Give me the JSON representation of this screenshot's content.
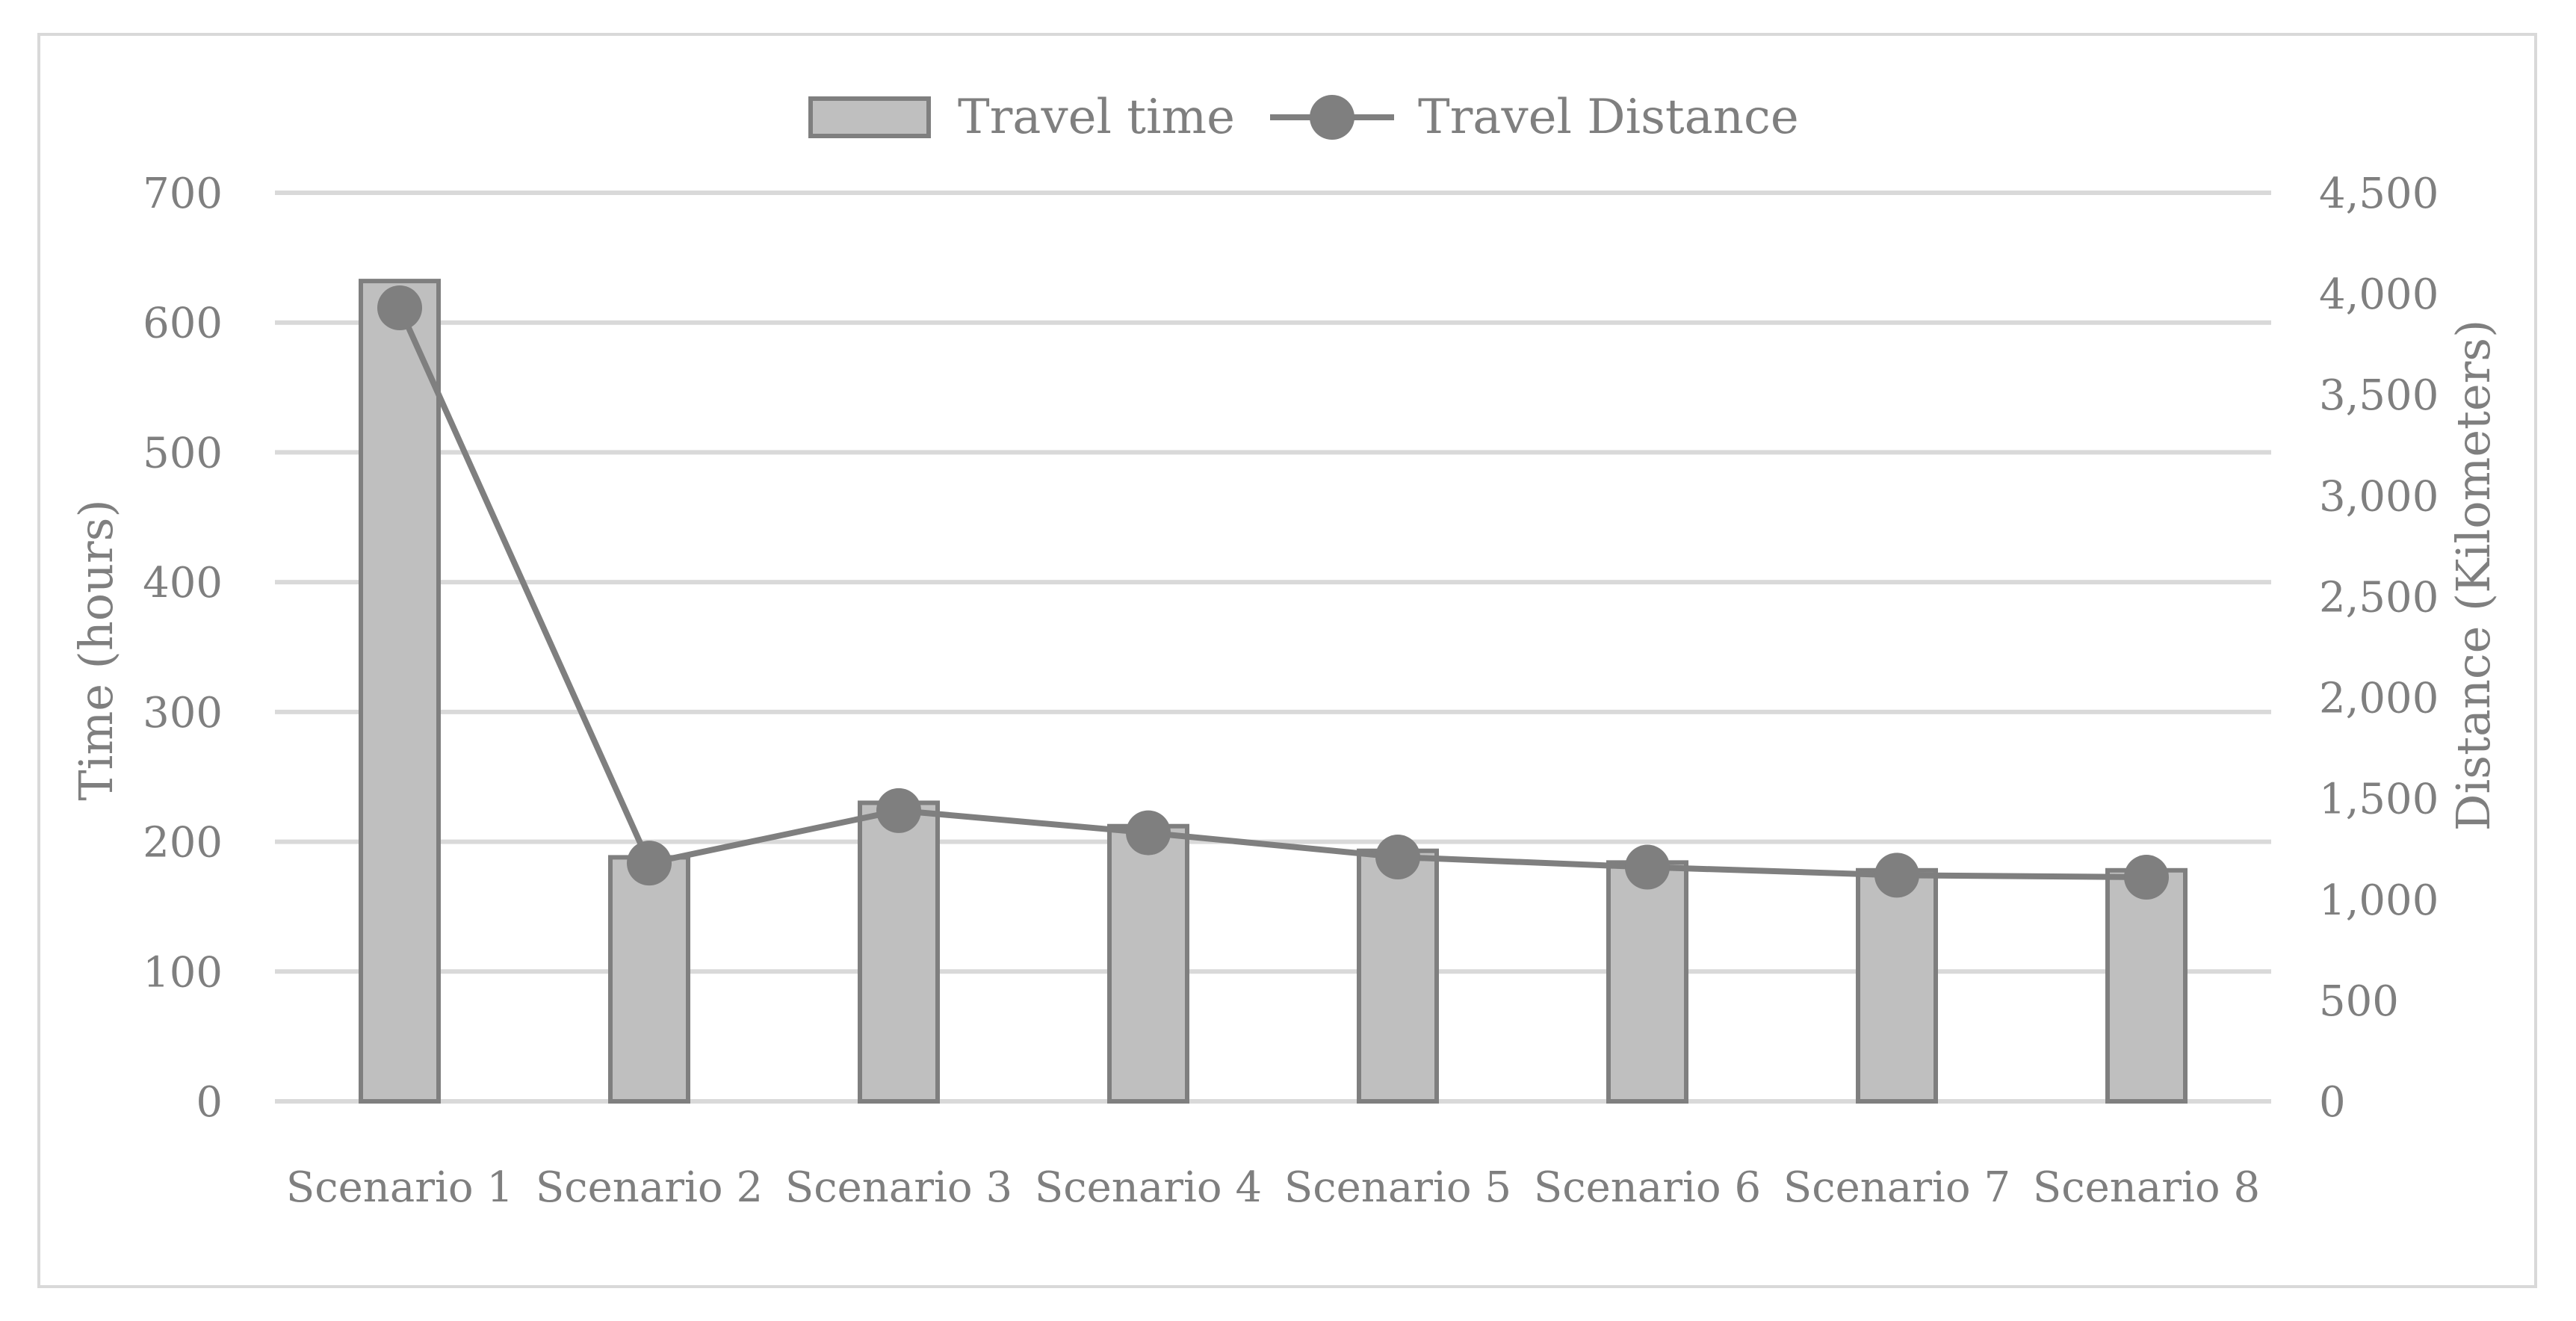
{
  "chart_data": {
    "type": "bar",
    "title": "",
    "categories": [
      "Scenario 1",
      "Scenario 2",
      "Scenario 3",
      "Scenario 4",
      "Scenario 5",
      "Scenario 6",
      "Scenario 7",
      "Scenario 8"
    ],
    "series": [
      {
        "name": "Travel time",
        "type": "bar",
        "axis": "left",
        "values": [
          632,
          188,
          230,
          212,
          193,
          184,
          178,
          178
        ]
      },
      {
        "name": "Travel Distance",
        "type": "line",
        "axis": "right",
        "values": [
          3930,
          1180,
          1440,
          1330,
          1210,
          1160,
          1120,
          1110
        ]
      }
    ],
    "ylabel": "Time (hours)",
    "y2label": "Distance (Kilometers)",
    "ylim": [
      0,
      700
    ],
    "y2lim": [
      0,
      4500
    ],
    "yticks": [
      "0",
      "100",
      "200",
      "300",
      "400",
      "500",
      "600",
      "700"
    ],
    "y2ticks": [
      "0",
      "500",
      "1,000",
      "1,500",
      "2,000",
      "2,500",
      "3,000",
      "3,500",
      "4,000",
      "4,500"
    ],
    "grid": true,
    "legend_position": "top",
    "colors": {
      "bar_fill": "#bfbfbf",
      "bar_stroke": "#7f7f7f",
      "line": "#7f7f7f",
      "marker": "#7f7f7f",
      "grid": "#d9d9d9",
      "text": "#7f7f7f"
    }
  }
}
